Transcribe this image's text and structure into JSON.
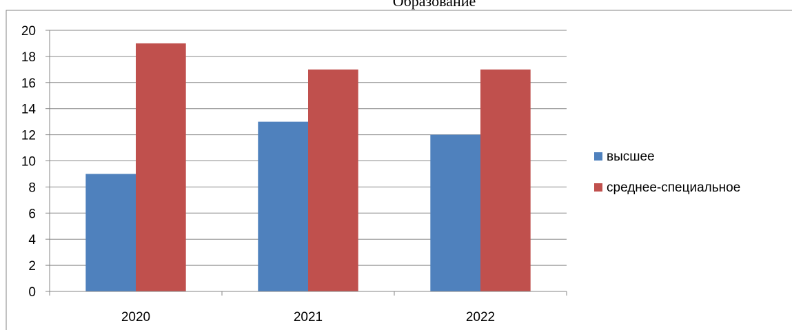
{
  "chart_data": {
    "type": "bar",
    "title": "Образование",
    "categories": [
      "2020",
      "2021",
      "2022"
    ],
    "series": [
      {
        "name": "высшее",
        "values": [
          9,
          13,
          12
        ],
        "color": "#4F81BD"
      },
      {
        "name": "среднее-специальное",
        "values": [
          19,
          17,
          17
        ],
        "color": "#C0504D"
      }
    ],
    "ylim": [
      0,
      20
    ],
    "yticks": [
      0,
      2,
      4,
      6,
      8,
      10,
      12,
      14,
      16,
      18,
      20
    ],
    "grid": true,
    "legend": "right",
    "gridline_color": "#868686",
    "axis_color": "#868686",
    "border_color": "#868686"
  }
}
